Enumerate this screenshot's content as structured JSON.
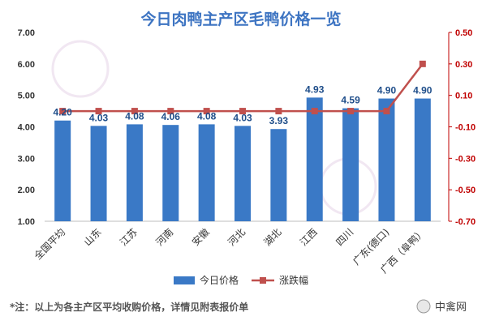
{
  "chart_data": {
    "type": "bar+line",
    "title": "今日肉鸭主产区毛鸭价格一览",
    "categories": [
      "全国平均",
      "山东",
      "江苏",
      "河南",
      "安徽",
      "河北",
      "湖北",
      "江西",
      "四川",
      "广东(德口)",
      "广西（阜鸭）"
    ],
    "series": [
      {
        "name": "今日价格",
        "type": "bar",
        "axis": "left",
        "color": "#3a79c6",
        "values": [
          4.2,
          4.03,
          4.08,
          4.06,
          4.08,
          4.03,
          3.93,
          4.93,
          4.59,
          4.9,
          4.9
        ]
      },
      {
        "name": "涨跌幅",
        "type": "line",
        "axis": "right",
        "color": "#c0504d",
        "values": [
          0,
          0,
          0,
          0,
          0,
          0,
          0,
          0,
          0,
          0,
          0.3
        ]
      }
    ],
    "data_labels": [
      "4.20",
      "4.03",
      "4.08",
      "4.06",
      "4.08",
      "4.03",
      "3.93",
      "4.93",
      "4.59",
      "4.90",
      "4.90"
    ],
    "y_left": {
      "range": [
        1.0,
        7.0
      ],
      "ticks": [
        "1.00",
        "2.00",
        "3.00",
        "4.00",
        "5.00",
        "6.00",
        "7.00"
      ]
    },
    "y_right": {
      "range": [
        -0.7,
        0.5
      ],
      "ticks": [
        "0.50",
        "0.30",
        "0.10",
        "-0.10",
        "-0.30",
        "-0.50",
        "-0.70"
      ]
    },
    "legend": {
      "position": "bottom",
      "items": [
        "今日价格",
        "涨跌幅"
      ]
    },
    "grid": false,
    "note": "*注：以上为各主产区平均收购价格，详情见附表报价单",
    "brand": "中禽网",
    "watermark_text": "中禽网"
  },
  "colors": {
    "title": "#3d74c2",
    "label": "#1f4e8a",
    "left_axis_text": "#333333",
    "right_axis_text": "#c00000",
    "right_axis_line": "#c00000"
  }
}
